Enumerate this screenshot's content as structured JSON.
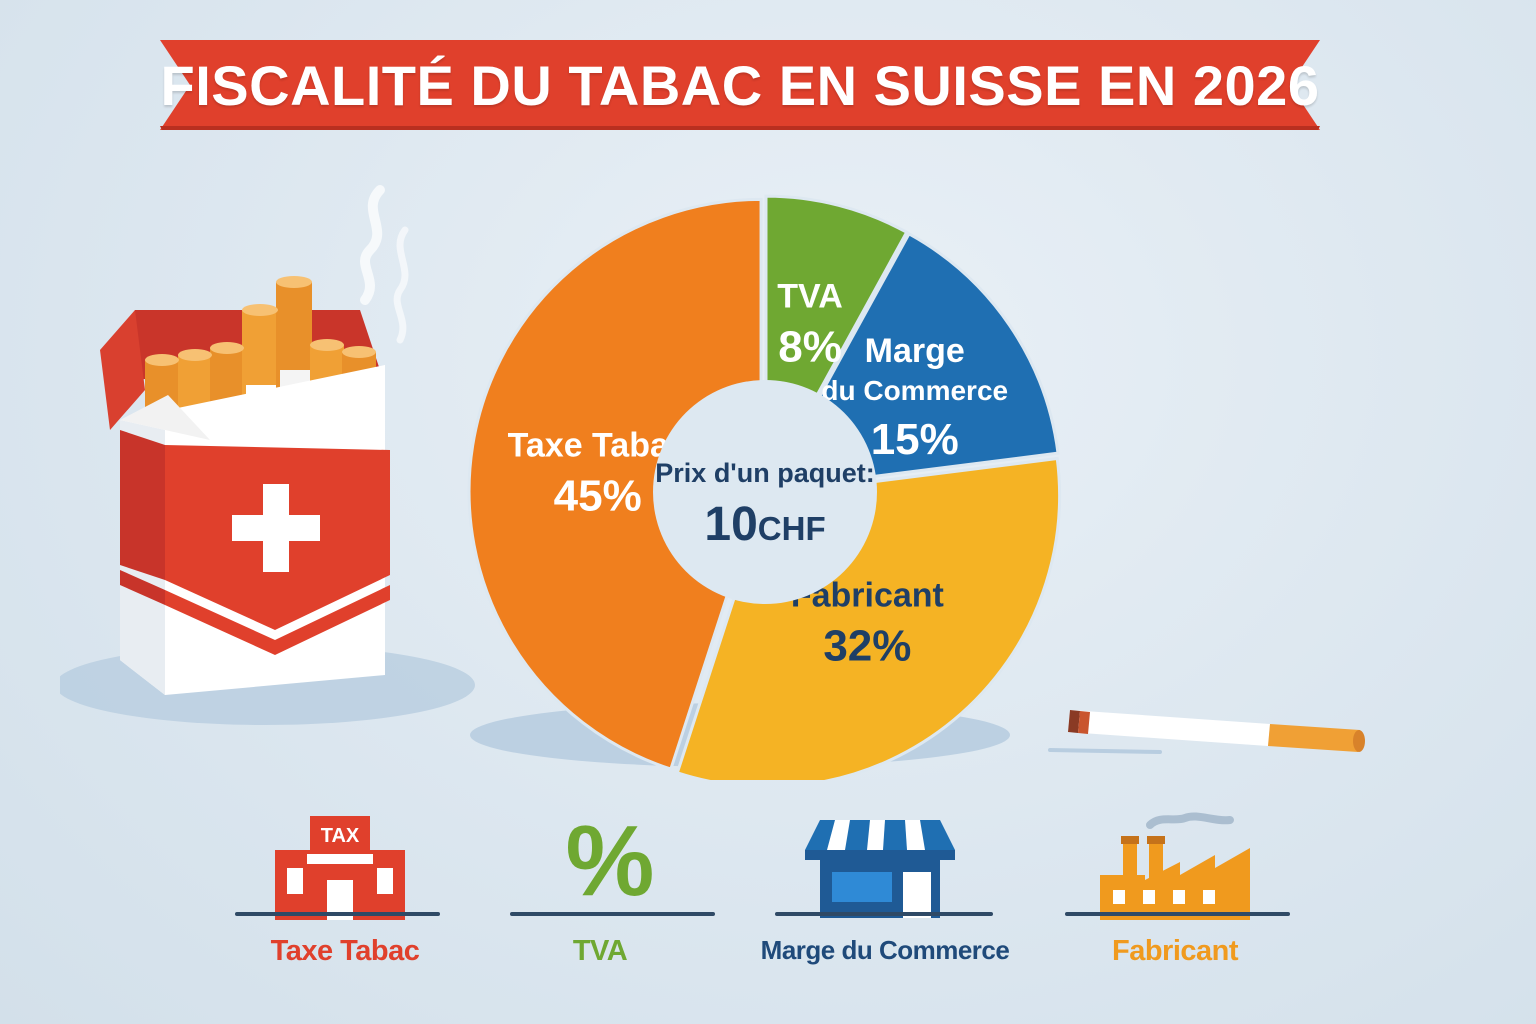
{
  "title": "FISCALITÉ DU TABAC EN SUISSE EN 2026",
  "center_label": "Prix d'un paquet:",
  "center_value": "10",
  "center_unit": "CHF",
  "colors": {
    "banner": "#e0402c",
    "taxe_tabac": "#f07f1e",
    "tva": "#6fa832",
    "marge": "#1f6fb2",
    "fabricant": "#f5b324"
  },
  "chart_data": {
    "type": "pie",
    "title": "",
    "slices": [
      {
        "name": "Taxe Tabac",
        "value": 45,
        "label": "45%",
        "color": "#f07f1e"
      },
      {
        "name": "TVA",
        "value": 8,
        "label": "8%",
        "color": "#6fa832"
      },
      {
        "name": "Marge du Commerce",
        "value": 15,
        "label": "15%",
        "color": "#1f6fb2"
      },
      {
        "name": "Fabricant",
        "value": 32,
        "label": "32%",
        "color": "#f5b324"
      }
    ]
  },
  "legend": [
    {
      "label": "Taxe Tabac",
      "icon": "tax-building-icon",
      "icon_text": "TAX",
      "color": "#e0402c"
    },
    {
      "label": "TVA",
      "icon": "percent-icon",
      "icon_text": "%",
      "color": "#6fa832"
    },
    {
      "label": "Marge du Commerce",
      "icon": "storefront-icon",
      "color": "#1f5a95"
    },
    {
      "label": "Fabricant",
      "icon": "factory-icon",
      "color": "#f09a1e"
    }
  ]
}
